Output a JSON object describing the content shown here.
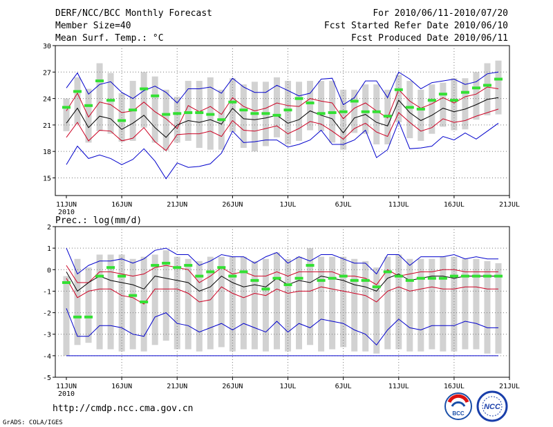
{
  "header": {
    "title": "DERF/NCC/BCC Monthly Forecast",
    "member": "Member Size=40",
    "variable": "Mean Surf. Temp.: °C",
    "period": "For 2010/06/11-2010/07/20",
    "started": "Fcst Started Refer Date 2010/06/10",
    "produced": "Fcst Produced Date 2010/06/11"
  },
  "footer": {
    "url": "http://cmdp.ncc.cma.gov.cn",
    "credit": "GrADS: COLA/IGES",
    "logo1": "BCC",
    "logo2": "NCC"
  },
  "colors": {
    "envelope": "#0000cc",
    "spread": "#cc0022",
    "mean": "#000000",
    "median": "#33e033",
    "box": "#d2d2d2",
    "grid": "#777777"
  },
  "chart_data": [
    {
      "type": "line",
      "name": "temperature",
      "title": "Mean Surf. Temp.: °C",
      "days": 40,
      "ylim": [
        13,
        30
      ],
      "yticks": [
        15,
        18,
        21,
        24,
        27,
        30
      ],
      "xtick_labels": [
        "11JUN",
        "16JUN",
        "21JUN",
        "26JUN",
        "1JUL",
        "6JUL",
        "11JUL",
        "16JUL",
        "21JUL"
      ],
      "year_label": "2010",
      "series": [
        {
          "name": "max",
          "values": [
            25.2,
            26.9,
            24.5,
            25.6,
            25.9,
            24.7,
            24.0,
            24.9,
            25.4,
            24.7,
            23.5,
            25.1,
            25.1,
            25.3,
            24.6,
            26.3,
            25.3,
            24.7,
            24.7,
            25.5,
            24.9,
            24.3,
            24.6,
            26.2,
            26.3,
            23.3,
            24.1,
            26.0,
            26.0,
            24.1,
            27.0,
            26.2,
            25.1,
            25.8,
            26.0,
            26.2,
            25.6,
            25.9,
            26.8,
            27.0
          ]
        },
        {
          "name": "upper",
          "values": [
            22.6,
            24.6,
            21.9,
            23.6,
            23.3,
            22.4,
            22.6,
            23.6,
            22.5,
            21.7,
            20.6,
            23.2,
            22.5,
            23.1,
            22.2,
            24.1,
            23.1,
            22.6,
            22.9,
            23.5,
            23.2,
            23.1,
            24.0,
            23.7,
            23.5,
            21.7,
            22.9,
            23.5,
            22.6,
            21.8,
            25.0,
            23.7,
            22.9,
            23.4,
            24.1,
            23.5,
            24.2,
            24.5,
            25.3,
            25.1
          ]
        },
        {
          "name": "mean",
          "values": [
            21.2,
            22.9,
            20.7,
            22.0,
            21.7,
            20.5,
            21.2,
            22.1,
            20.7,
            19.6,
            21.0,
            21.5,
            21.3,
            21.6,
            21.1,
            22.9,
            21.7,
            21.6,
            21.8,
            22.1,
            21.2,
            21.6,
            22.6,
            22.1,
            21.7,
            20.1,
            21.8,
            22.2,
            21.3,
            20.9,
            23.8,
            22.4,
            21.5,
            22.1,
            22.9,
            22.5,
            22.8,
            23.3,
            23.9,
            24.1
          ]
        },
        {
          "name": "lower",
          "values": [
            19.6,
            21.3,
            19.2,
            20.4,
            20.3,
            19.2,
            19.5,
            20.7,
            19.1,
            18.1,
            19.9,
            20.0,
            20.0,
            20.3,
            19.7,
            21.5,
            20.4,
            20.3,
            20.6,
            20.9,
            20.0,
            20.6,
            21.4,
            21.1,
            20.3,
            19.4,
            20.6,
            21.2,
            20.2,
            19.7,
            22.4,
            21.3,
            20.3,
            20.7,
            21.7,
            21.3,
            21.5,
            22.0,
            22.4,
            22.8
          ]
        },
        {
          "name": "min",
          "values": [
            16.5,
            18.6,
            17.2,
            17.6,
            17.2,
            16.5,
            17.1,
            18.3,
            16.9,
            14.9,
            16.7,
            16.2,
            16.3,
            16.6,
            17.8,
            20.3,
            19.0,
            19.1,
            19.3,
            19.3,
            18.5,
            18.8,
            19.3,
            20.4,
            18.8,
            18.8,
            19.3,
            20.4,
            17.3,
            18.2,
            21.4,
            18.3,
            18.4,
            18.6,
            19.7,
            19.3,
            20.1,
            19.4,
            20.3,
            21.2
          ]
        },
        {
          "name": "median",
          "values": [
            23.0,
            24.8,
            23.2,
            26.0,
            23.8,
            21.5,
            22.7,
            25.1,
            24.3,
            22.2,
            22.3,
            22.4,
            22.4,
            22.2,
            21.6,
            23.6,
            22.7,
            22.3,
            22.3,
            22.1,
            22.7,
            24.0,
            23.5,
            22.3,
            22.4,
            22.5,
            23.7,
            22.5,
            22.5,
            22.0,
            25.0,
            23.0,
            22.8,
            23.8,
            24.5,
            23.8,
            24.7,
            25.2,
            25.5,
            26.2
          ]
        },
        {
          "name": "box_top",
          "values": [
            24.0,
            26.4,
            25.1,
            28.0,
            26.9,
            24.6,
            26.0,
            27.0,
            26.5,
            25.0,
            24.2,
            26.0,
            26.0,
            26.4,
            25.0,
            26.3,
            25.6,
            25.9,
            25.9,
            26.4,
            26.0,
            25.9,
            26.0,
            26.0,
            26.0,
            25.0,
            25.0,
            25.6,
            25.6,
            25.0,
            26.7,
            26.0,
            25.0,
            25.6,
            25.8,
            26.3,
            26.3,
            27.0,
            28.0,
            28.3
          ]
        },
        {
          "name": "box_bottom",
          "values": [
            20.3,
            21.1,
            19.0,
            20.3,
            20.0,
            19.1,
            19.2,
            20.7,
            19.0,
            18.1,
            19.0,
            19.2,
            18.4,
            18.2,
            18.2,
            20.2,
            18.4,
            18.0,
            18.6,
            19.6,
            18.8,
            19.2,
            20.4,
            20.3,
            19.0,
            18.2,
            20.1,
            20.0,
            18.8,
            18.8,
            21.3,
            19.5,
            19.2,
            20.0,
            20.8,
            20.4,
            20.5,
            21.6,
            22.1,
            22.2
          ]
        }
      ]
    },
    {
      "type": "line",
      "name": "precipitation",
      "title": "Prec.: log(mm/d)",
      "days": 40,
      "ylim": [
        -5,
        2
      ],
      "yticks": [
        -5,
        -4,
        -3,
        -2,
        -1,
        0,
        1,
        2
      ],
      "xtick_labels": [
        "11JUN",
        "16JUN",
        "21JUN",
        "26JUN",
        "1JUL",
        "6JUL",
        "11JUL",
        "16JUL",
        "21JUL"
      ],
      "year_label": "2010",
      "series": [
        {
          "name": "max",
          "values": [
            1.0,
            -0.2,
            0.2,
            0.4,
            0.4,
            0.5,
            0.3,
            0.5,
            0.9,
            1.0,
            0.7,
            0.7,
            0.2,
            0.4,
            0.7,
            0.6,
            0.6,
            0.3,
            0.6,
            0.8,
            0.3,
            0.6,
            0.4,
            0.7,
            0.7,
            0.5,
            0.3,
            0.3,
            -0.2,
            0.7,
            0.7,
            0.2,
            0.6,
            0.6,
            0.6,
            0.7,
            0.5,
            0.6,
            0.5,
            0.5
          ]
        },
        {
          "name": "upper",
          "values": [
            0.2,
            -0.6,
            -0.6,
            -0.1,
            -0.1,
            -0.2,
            -0.3,
            -0.2,
            0.1,
            0.2,
            0.1,
            0.0,
            -0.6,
            -0.3,
            0.1,
            -0.2,
            -0.1,
            -0.3,
            -0.3,
            -0.1,
            -0.3,
            -0.1,
            -0.1,
            -0.1,
            -0.1,
            -0.3,
            -0.3,
            -0.4,
            -0.7,
            0.0,
            -0.3,
            -0.2,
            -0.1,
            -0.1,
            0.0,
            0.0,
            -0.1,
            -0.1,
            -0.1,
            -0.1
          ]
        },
        {
          "name": "mean",
          "values": [
            -0.1,
            -1.0,
            -0.6,
            -0.3,
            -0.5,
            -0.6,
            -0.7,
            -0.9,
            -0.3,
            -0.4,
            -0.5,
            -0.6,
            -1.0,
            -0.8,
            -0.3,
            -0.6,
            -0.8,
            -0.7,
            -0.8,
            -0.4,
            -0.7,
            -0.5,
            -0.6,
            -0.3,
            -0.4,
            -0.5,
            -0.7,
            -0.8,
            -1.0,
            -0.4,
            -0.2,
            -0.5,
            -0.4,
            -0.3,
            -0.3,
            -0.4,
            -0.3,
            -0.3,
            -0.3,
            -0.3
          ]
        },
        {
          "name": "lower",
          "values": [
            -0.4,
            -1.3,
            -1.0,
            -0.9,
            -0.9,
            -1.2,
            -1.3,
            -1.6,
            -0.9,
            -0.9,
            -0.9,
            -1.1,
            -1.5,
            -1.4,
            -0.8,
            -1.1,
            -1.3,
            -1.1,
            -1.2,
            -0.9,
            -1.1,
            -1.0,
            -1.0,
            -0.8,
            -0.9,
            -1.0,
            -1.1,
            -1.2,
            -1.5,
            -1.0,
            -0.8,
            -1.0,
            -0.9,
            -0.8,
            -0.9,
            -0.9,
            -0.8,
            -0.8,
            -0.9,
            -0.9
          ]
        },
        {
          "name": "min",
          "values": [
            -1.8,
            -3.1,
            -3.1,
            -2.6,
            -2.6,
            -2.7,
            -3.0,
            -3.1,
            -2.2,
            -2.0,
            -2.5,
            -2.6,
            -2.9,
            -2.7,
            -2.5,
            -2.8,
            -2.5,
            -2.7,
            -2.9,
            -2.4,
            -2.9,
            -2.5,
            -2.7,
            -2.3,
            -2.4,
            -2.5,
            -2.8,
            -3.0,
            -3.5,
            -2.8,
            -2.3,
            -2.7,
            -2.8,
            -2.6,
            -2.6,
            -2.6,
            -2.4,
            -2.5,
            -2.7,
            -2.7
          ]
        },
        {
          "name": "median",
          "values": [
            -0.6,
            -2.2,
            -2.2,
            -0.3,
            0.1,
            -0.3,
            -1.2,
            -1.5,
            0.2,
            0.3,
            0.1,
            0.2,
            -0.3,
            -0.1,
            0.1,
            -0.3,
            -0.1,
            -0.5,
            -0.9,
            -0.4,
            -0.7,
            -0.4,
            0.2,
            -0.5,
            -0.4,
            -0.3,
            -0.5,
            -0.5,
            -0.8,
            -0.1,
            -0.3,
            -0.5,
            -0.4,
            -0.4,
            -0.4,
            -0.3,
            -0.3,
            -0.3,
            -0.3,
            -0.3
          ]
        },
        {
          "name": "box_top",
          "values": [
            -0.3,
            0.5,
            0.1,
            0.7,
            0.7,
            0.7,
            0.5,
            0.6,
            0.7,
            0.9,
            0.6,
            0.5,
            0.4,
            0.6,
            0.6,
            0.6,
            0.6,
            0.4,
            0.5,
            0.8,
            0.5,
            0.6,
            1.0,
            0.6,
            0.6,
            0.6,
            0.5,
            0.4,
            0.1,
            0.6,
            0.7,
            0.5,
            0.5,
            0.5,
            0.6,
            0.6,
            0.5,
            0.5,
            0.4,
            0.3
          ]
        },
        {
          "name": "box_bottom",
          "values": [
            -4.0,
            -3.5,
            -3.4,
            -3.7,
            -3.7,
            -3.8,
            -3.7,
            -3.8,
            -3.5,
            -3.3,
            -3.7,
            -3.7,
            -3.8,
            -3.7,
            -3.6,
            -3.8,
            -3.7,
            -3.7,
            -3.8,
            -3.7,
            -3.8,
            -3.7,
            -3.5,
            -3.8,
            -3.7,
            -3.6,
            -3.8,
            -3.8,
            -3.9,
            -3.7,
            -3.7,
            -3.8,
            -3.8,
            -3.7,
            -3.8,
            -3.8,
            -3.7,
            -3.7,
            -3.9,
            -3.9
          ]
        },
        {
          "name": "floor",
          "values": [
            -4.0,
            -4.0,
            -4.0,
            -4.0,
            -4.0,
            -4.0,
            -4.0,
            -4.0,
            -4.0,
            -4.0,
            -4.0,
            -4.0,
            -4.0,
            -4.0,
            -4.0,
            -4.0,
            -4.0,
            -4.0,
            -4.0,
            -4.0,
            -4.0,
            -4.0,
            -4.0,
            -4.0,
            -4.0,
            -4.0,
            -4.0,
            -4.0,
            -4.0,
            -4.0,
            -4.0,
            -4.0,
            -4.0,
            -4.0,
            -4.0,
            -4.0,
            -4.0,
            -4.0,
            -4.0,
            -4.0
          ]
        }
      ]
    }
  ]
}
